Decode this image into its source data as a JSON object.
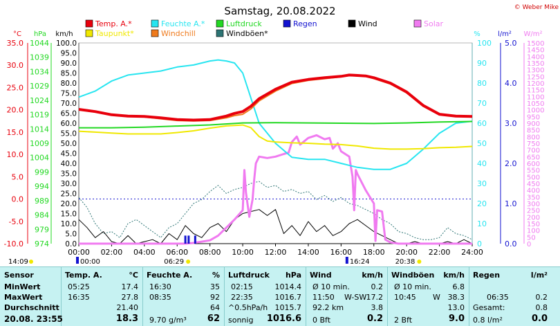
{
  "title": "Samstag, 20.08.2022",
  "copyright": "© Weber Mike",
  "colors": {
    "temp": "#e8000c",
    "dew": "#f0e800",
    "humidity": "#27e5f0",
    "windchill": "#ef7a1c",
    "pressure": "#22d822",
    "gust": "#2c7474",
    "rain": "#1212d0",
    "wind": "#000000",
    "solar": "#f07af0"
  },
  "legend": [
    {
      "label": "Temp. A.*",
      "color": "#e8000c"
    },
    {
      "label": "Feuchte A.*",
      "color": "#27e5f0"
    },
    {
      "label": "Luftdruck",
      "color": "#22d822"
    },
    {
      "label": "Regen",
      "color": "#1212d0"
    },
    {
      "label": "Wind",
      "color": "#000000"
    },
    {
      "label": "Solar",
      "color": "#f07af0"
    },
    {
      "label": "Taupunkt*",
      "color": "#f0e800"
    },
    {
      "label": "Windchill",
      "color": "#ef7a1c"
    },
    {
      "label": "Windböen*",
      "color": "#2c7474"
    }
  ],
  "axis_units": {
    "temp": "°C",
    "pressure": "hPa",
    "wind": "km/h",
    "humidity": "%",
    "rain": "l/m²",
    "solar": "W/m²"
  },
  "axis_ticks": {
    "temp": [
      "35.0",
      "30.0",
      "25.0",
      "20.0",
      "15.0",
      "10.0",
      "5.0",
      "0.0",
      "-5.0",
      "-10.0"
    ],
    "pressure": [
      "1044",
      "1039",
      "1034",
      "1029",
      "1024",
      "1019",
      "1014",
      "1009",
      "1004",
      "999",
      "994",
      "989",
      "984",
      "979",
      "974"
    ],
    "wind": [
      "100.0",
      "95.0",
      "90.0",
      "85.0",
      "80.0",
      "75.0",
      "70.0",
      "65.0",
      "60.0",
      "55.0",
      "50.0",
      "45.0",
      "40.0",
      "35.0",
      "30.0",
      "25.0",
      "20.0",
      "15.0",
      "10.0",
      "5.0",
      "0.0"
    ],
    "humidity": [
      "100",
      "90",
      "80",
      "70",
      "60",
      "50",
      "40",
      "30",
      "20",
      "10",
      "0"
    ],
    "rain": [
      "5.0",
      "4.0",
      "3.0",
      "2.0",
      "1.0",
      "0.0"
    ],
    "solar": [
      "1500",
      "1450",
      "1400",
      "1350",
      "1300",
      "1250",
      "1200",
      "1150",
      "1100",
      "1050",
      "1000",
      "950",
      "900",
      "850",
      "800",
      "750",
      "700",
      "650",
      "600",
      "550",
      "500",
      "450",
      "400",
      "350",
      "300",
      "250",
      "200",
      "150",
      "100",
      "50",
      "0"
    ],
    "time": [
      "00:00",
      "02:00",
      "04:00",
      "06:00",
      "08:00",
      "10:00",
      "12:00",
      "14:00",
      "16:00",
      "18:00",
      "20:00",
      "22:00",
      "24:00"
    ]
  },
  "markers": {
    "last_update": "14:09",
    "marker1": "00:00",
    "sunrise": "06:29",
    "marker2": "16:24",
    "sunset": "20:38"
  },
  "chart_data": {
    "type": "line",
    "title": "Samstag, 20.08.2022",
    "x_unit": "hours",
    "xlim": [
      0,
      24
    ],
    "axes": {
      "temp": {
        "unit": "°C",
        "ylim": [
          -10,
          35
        ]
      },
      "pressure": {
        "unit": "hPa",
        "ylim": [
          974,
          1044
        ]
      },
      "wind": {
        "unit": "km/h",
        "ylim": [
          0,
          100
        ]
      },
      "humidity": {
        "unit": "%",
        "ylim": [
          0,
          100
        ]
      },
      "rain": {
        "unit": "l/m²",
        "ylim": [
          0,
          5
        ]
      },
      "solar": {
        "unit": "W/m²",
        "ylim": [
          0,
          1500
        ]
      }
    },
    "series": [
      {
        "name": "Temp. A.*",
        "key": "temp",
        "axis": "temp",
        "x": [
          0,
          1,
          2,
          3,
          4,
          5,
          6,
          7,
          8,
          9,
          9.5,
          10,
          10.5,
          11,
          12,
          13,
          14,
          15,
          16,
          16.5,
          17,
          17.5,
          18,
          19,
          20,
          21,
          22,
          23,
          24
        ],
        "y": [
          20.1,
          19.6,
          18.9,
          18.6,
          18.5,
          18.2,
          17.8,
          17.7,
          17.8,
          18.6,
          19.2,
          19.6,
          20.8,
          22.5,
          24.6,
          26.2,
          26.8,
          27.2,
          27.5,
          27.8,
          27.7,
          27.6,
          27.2,
          26.0,
          24.0,
          21.0,
          19.0,
          18.6,
          18.5
        ]
      },
      {
        "name": "Windchill",
        "key": "windchill",
        "axis": "temp",
        "x": [
          0,
          1,
          2,
          3,
          4,
          5,
          6,
          7,
          8,
          9,
          9.5,
          10,
          10.5,
          11,
          12,
          13,
          14,
          15,
          16,
          16.5,
          17,
          17.5,
          18,
          19,
          20,
          21,
          22,
          23,
          24
        ],
        "y": [
          20.0,
          19.5,
          18.8,
          18.5,
          18.4,
          18.0,
          17.6,
          17.5,
          17.6,
          18.2,
          18.7,
          19.0,
          20.2,
          22.0,
          24.2,
          25.9,
          26.6,
          27.0,
          27.4,
          27.7,
          27.6,
          27.5,
          27.0,
          25.8,
          23.8,
          20.8,
          18.9,
          18.5,
          18.4
        ]
      },
      {
        "name": "Feuchte A.*",
        "key": "humidity",
        "axis": "humidity",
        "x": [
          0,
          1,
          2,
          3,
          4,
          5,
          6,
          7,
          8,
          8.5,
          9,
          9.5,
          10,
          11,
          12,
          13,
          14,
          15,
          16,
          17,
          18,
          19,
          20,
          21,
          22,
          23,
          24
        ],
        "y": [
          73,
          76,
          81,
          84,
          85,
          86,
          88,
          89,
          91,
          91.5,
          91,
          90,
          85,
          60,
          50,
          43,
          42,
          42,
          40,
          38,
          37,
          37,
          40,
          47,
          55,
          60,
          61
        ]
      },
      {
        "name": "Taupunkt*",
        "key": "dew",
        "axis": "temp",
        "x": [
          0,
          1,
          2,
          3,
          4,
          5,
          6,
          7,
          8,
          9,
          10,
          10.5,
          11,
          11.5,
          12,
          13,
          14,
          15,
          16,
          17,
          18,
          19,
          20,
          21,
          22,
          23,
          24
        ],
        "y": [
          15.2,
          15.0,
          14.8,
          14.6,
          14.6,
          14.6,
          14.9,
          15.3,
          15.9,
          16.4,
          16.6,
          16.0,
          14.0,
          13.0,
          12.8,
          12.6,
          12.5,
          12.3,
          12.2,
          11.9,
          11.4,
          11.2,
          11.2,
          11.3,
          11.5,
          11.6,
          11.8
        ]
      },
      {
        "name": "Luftdruck",
        "key": "pressure",
        "axis": "pressure",
        "x": [
          0,
          2,
          4,
          6,
          8,
          10,
          12,
          14,
          16,
          18,
          20,
          22,
          24
        ],
        "y": [
          1014.4,
          1014.4,
          1014.6,
          1015.0,
          1015.4,
          1016.1,
          1016.2,
          1016.1,
          1016.0,
          1015.9,
          1016.1,
          1016.4,
          1016.6
        ]
      },
      {
        "name": "Solar",
        "key": "solar",
        "axis": "solar",
        "x": [
          0,
          6.5,
          7,
          7.5,
          8,
          8.5,
          9,
          9.5,
          10,
          10.1,
          10.2,
          10.4,
          10.6,
          10.7,
          10.8,
          11,
          11.5,
          12,
          12.5,
          12.8,
          13,
          13.3,
          13.5,
          14,
          14.5,
          15,
          15.3,
          15.5,
          15.8,
          16,
          16.5,
          16.7,
          16.8,
          16.9,
          17,
          17.5,
          18,
          18.1,
          18.2,
          18.5,
          18.7,
          19,
          19.5,
          20,
          20.5,
          21,
          24
        ],
        "y": [
          0,
          0,
          5,
          15,
          25,
          60,
          120,
          180,
          250,
          550,
          380,
          200,
          330,
          480,
          600,
          650,
          640,
          650,
          670,
          680,
          760,
          800,
          740,
          790,
          810,
          780,
          790,
          710,
          750,
          690,
          650,
          500,
          250,
          550,
          520,
          400,
          300,
          20,
          250,
          240,
          30,
          10,
          0,
          0,
          0,
          0,
          0
        ]
      },
      {
        "name": "Wind",
        "key": "wind",
        "axis": "wind",
        "x": [
          0,
          0.5,
          1,
          1.5,
          2,
          2.5,
          3,
          3.5,
          4,
          4.5,
          5,
          5.5,
          6,
          6.5,
          7,
          7.5,
          8,
          8.5,
          9,
          9.5,
          10,
          10.5,
          11,
          11.5,
          12,
          12.5,
          13,
          13.5,
          14,
          14.5,
          15,
          15.5,
          16,
          16.5,
          17,
          17.5,
          18,
          18.5,
          19,
          19.5,
          20,
          20.5,
          21,
          21.5,
          22,
          22.5,
          23,
          23.5,
          24
        ],
        "y": [
          12,
          8,
          3,
          6,
          1,
          0,
          4,
          0,
          1,
          2,
          0,
          5,
          2,
          9,
          5,
          3,
          8,
          10,
          6,
          12,
          15,
          16,
          17,
          14,
          17,
          5,
          9,
          4,
          11,
          6,
          9,
          4,
          6,
          10,
          12,
          9,
          6,
          4,
          2,
          0,
          0,
          1,
          0,
          0,
          0,
          1,
          0,
          2,
          0
        ]
      },
      {
        "name": "Windböen*",
        "key": "gust",
        "axis": "wind",
        "x": [
          0,
          0.5,
          1,
          1.5,
          2,
          2.5,
          3,
          3.5,
          4,
          4.5,
          5,
          5.5,
          6,
          6.5,
          7,
          7.5,
          8,
          8.5,
          9,
          9.5,
          10,
          10.5,
          11,
          11.5,
          12,
          12.5,
          13,
          13.5,
          14,
          14.5,
          15,
          15.5,
          16,
          16.5,
          17,
          17.5,
          18,
          18.5,
          19,
          19.5,
          20,
          20.5,
          21,
          21.5,
          22,
          22.5,
          23,
          23.5,
          24
        ],
        "y": [
          23,
          18,
          10,
          5,
          6,
          3,
          10,
          12,
          9,
          6,
          3,
          8,
          10,
          15,
          20,
          22,
          26,
          29,
          25,
          27,
          28,
          30,
          31,
          28,
          29,
          26,
          27,
          25,
          26,
          22,
          24,
          21,
          23,
          20,
          19,
          17,
          15,
          12,
          10,
          6,
          5,
          3,
          2,
          2,
          3,
          8,
          5,
          4,
          2
        ]
      }
    ],
    "rain_events": [
      {
        "time": 6.5,
        "value": 0.2
      },
      {
        "time": 6.7,
        "value": 0.2
      },
      {
        "time": 7.1,
        "value": 0.2
      }
    ],
    "reference_lines": [
      {
        "axis": "temp",
        "value": 0,
        "style": "dotted",
        "color": "#1212d0"
      }
    ]
  },
  "table": {
    "header": {
      "sensor": "Sensor",
      "temp_label": "Temp. A.",
      "temp_unit": "°C",
      "hum_label": "Feuchte A.",
      "hum_unit": "%",
      "press_label": "Luftdruck",
      "press_unit": "hPa",
      "wind_label": "Wind",
      "wind_unit": "km/h",
      "gust_label": "Windböen",
      "gust_unit": "km/h",
      "rain_label": "Regen",
      "rain_unit": "l/m²"
    },
    "rows": {
      "minwert": "MinWert",
      "maxwert": "MaxWert",
      "durchschnitt": "Durchschnitt",
      "current_time": "20.08.  23:55"
    },
    "temp": {
      "min_time": "05:25",
      "min_val": "17.4",
      "max_time": "16:35",
      "max_val": "27.8",
      "avg": "21.40",
      "current": "18.3"
    },
    "hum": {
      "min_time": "16:30",
      "min_val": "35",
      "max_time": "08:35",
      "max_val": "92",
      "avg": "64",
      "abs": "9.70 g/m³",
      "current": "62"
    },
    "press": {
      "min_time": "02:15",
      "min_val": "1014.4",
      "max_time": "22:35",
      "max_val": "1016.7",
      "trend": "^0.5hPa/h",
      "trend_val": "1015.7",
      "state": "sonnig",
      "current": "1016.6"
    },
    "wind": {
      "avg_label": "Ø 10 min.",
      "avg_val": "0.2",
      "max_time": "11:50",
      "max_dir": "W-SW",
      "max_val": "17.2",
      "dist": "92.2 km",
      "dist_val": "3.8",
      "bft": "0 Bft",
      "current": "0.2"
    },
    "gust": {
      "avg_label": "Ø 10 min.",
      "avg_val": "6.8",
      "max_time": "10:45",
      "max_dir": "W",
      "max_val": "38.3",
      "avg": "13.0",
      "bft": "2 Bft",
      "current": "9.0"
    },
    "rain": {
      "max_time": "06:35",
      "max_val": "0.2",
      "total_label": "Gesamt:",
      "total_val": "0.8",
      "day": "0.8 l/m²",
      "current": "0.0"
    }
  }
}
